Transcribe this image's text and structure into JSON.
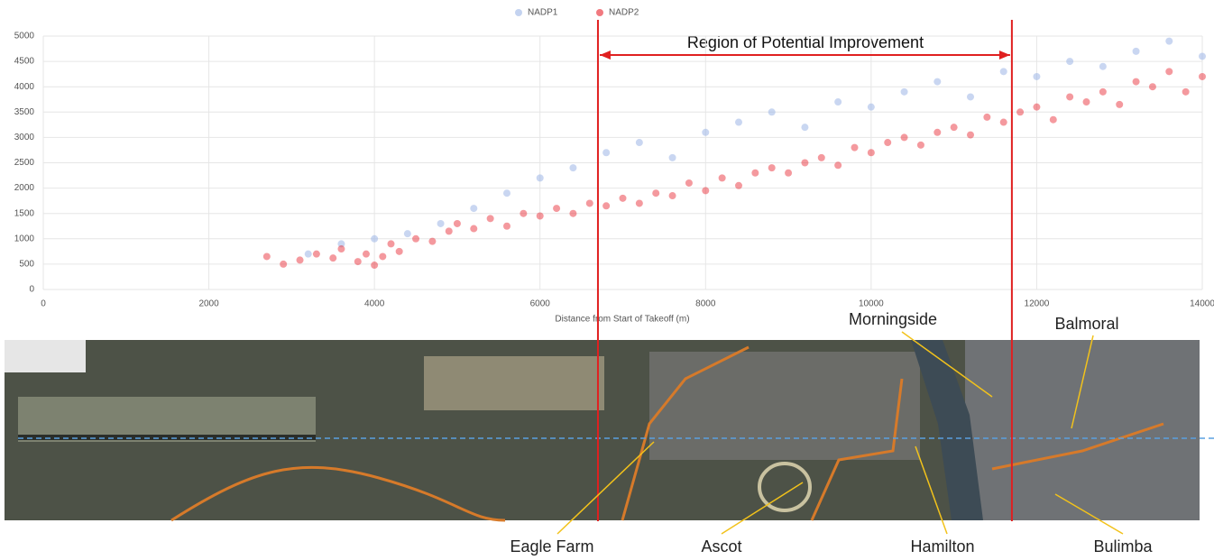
{
  "chart_data": {
    "type": "scatter",
    "xlabel": "Distance from Start of Takeoff (m)",
    "xlim": [
      0,
      14000
    ],
    "xticks": [
      0,
      2000,
      4000,
      6000,
      8000,
      10000,
      12000,
      14000
    ],
    "ylim": [
      0,
      5000
    ],
    "yticks": [
      0,
      500,
      1000,
      1500,
      2000,
      2500,
      3000,
      3500,
      4000,
      4500,
      5000
    ],
    "grid": true,
    "series": [
      {
        "name": "NADP1",
        "color": "#9db6e6",
        "x": [
          3200,
          3600,
          4000,
          4400,
          4800,
          5200,
          5600,
          6000,
          6400,
          6800,
          7200,
          7600,
          8000,
          8400,
          8800,
          9200,
          9600,
          10000,
          10400,
          10800,
          11200,
          11600,
          12000,
          12400,
          12800,
          13200,
          13600,
          14000
        ],
        "values": [
          700,
          900,
          1000,
          1100,
          1300,
          1600,
          1900,
          2200,
          2400,
          2700,
          2900,
          2600,
          3100,
          3300,
          3500,
          3200,
          3700,
          3600,
          3900,
          4100,
          3800,
          4300,
          4200,
          4500,
          4400,
          4700,
          4900,
          4600
        ]
      },
      {
        "name": "NADP2",
        "color": "#e8202a",
        "x": [
          2700,
          2900,
          3100,
          3300,
          3500,
          3600,
          3800,
          3900,
          4000,
          4100,
          4200,
          4300,
          4500,
          4700,
          4900,
          5000,
          5200,
          5400,
          5600,
          5800,
          6000,
          6200,
          6400,
          6600,
          6800,
          7000,
          7200,
          7400,
          7600,
          7800,
          8000,
          8200,
          8400,
          8600,
          8800,
          9000,
          9200,
          9400,
          9600,
          9800,
          10000,
          10200,
          10400,
          10600,
          10800,
          11000,
          11200,
          11400,
          11600,
          11800,
          12000,
          12200,
          12400,
          12600,
          12800,
          13000,
          13200,
          13400,
          13600,
          13800,
          14000
        ],
        "values": [
          650,
          500,
          580,
          700,
          620,
          800,
          550,
          700,
          480,
          650,
          900,
          750,
          1000,
          950,
          1150,
          1300,
          1200,
          1400,
          1250,
          1500,
          1450,
          1600,
          1500,
          1700,
          1650,
          1800,
          1700,
          1900,
          1850,
          2100,
          1950,
          2200,
          2050,
          2300,
          2400,
          2300,
          2500,
          2600,
          2450,
          2800,
          2700,
          2900,
          3000,
          2850,
          3100,
          3200,
          3050,
          3400,
          3300,
          3500,
          3600,
          3350,
          3800,
          3700,
          3900,
          3650,
          4100,
          4000,
          4300,
          3900,
          4200
        ]
      }
    ],
    "region": {
      "label": "Region of Potential Improvement",
      "start": 6700,
      "end": 11700,
      "color": "#e02020"
    },
    "map_labels": [
      "Morningside",
      "Balmoral",
      "Eagle Farm",
      "Ascot",
      "Hamilton",
      "Bulimba"
    ]
  }
}
